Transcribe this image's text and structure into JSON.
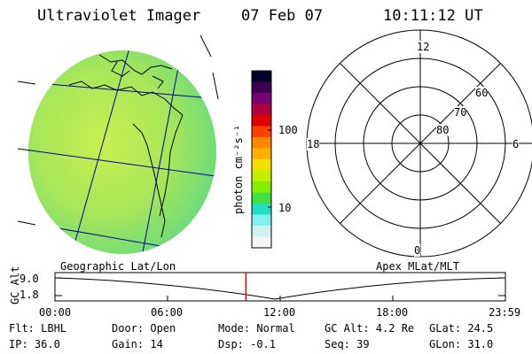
{
  "header": {
    "instrument": "Ultraviolet Imager",
    "date": "07 Feb 07",
    "time": "10:11:12 UT"
  },
  "colorbar": {
    "unit_label": "photon cm⁻²s⁻¹",
    "ticks": [
      "100",
      "10"
    ],
    "colors": [
      "#000028",
      "#3a0050",
      "#7a0070",
      "#b00040",
      "#e00000",
      "#ff4000",
      "#ff8800",
      "#ffb000",
      "#f0e000",
      "#c0f000",
      "#80f000",
      "#40e040",
      "#20e0c0",
      "#80f0f0",
      "#d0f0f0",
      "#f4f4f4"
    ]
  },
  "globe_panel": {
    "caption": "Geographic Lat/Lon",
    "fill_color": "#a8e65a",
    "grid_color": "#0000a0"
  },
  "polar_panel": {
    "caption": "Apex MLat/MLT",
    "mlt_labels": {
      "top": "12",
      "left": "18",
      "right": "6",
      "bottom": "0"
    },
    "mlat_labels": [
      "60",
      "70",
      "80"
    ]
  },
  "orbit_plot": {
    "ylabel": "GC Alt",
    "y_ticks": [
      "9.0",
      "1.8"
    ],
    "x_ticks": [
      "00:00",
      "06:00",
      "12:00",
      "18:00",
      "23:59"
    ],
    "current_time_marker_color": "#e00000",
    "current_time_fraction": 0.424
  },
  "info": {
    "filter": "Flt: LBHL",
    "ip": "IP: 36.0",
    "door": "Door: Open",
    "gain": "Gain: 14",
    "mode": "Mode: Normal",
    "dsp": "Dsp:   -0.1",
    "gc_alt": "GC Alt: 4.2 Re",
    "seq": "Seq: 39",
    "glat": "GLat:   24.5",
    "glon": "GLon:  31.0"
  }
}
